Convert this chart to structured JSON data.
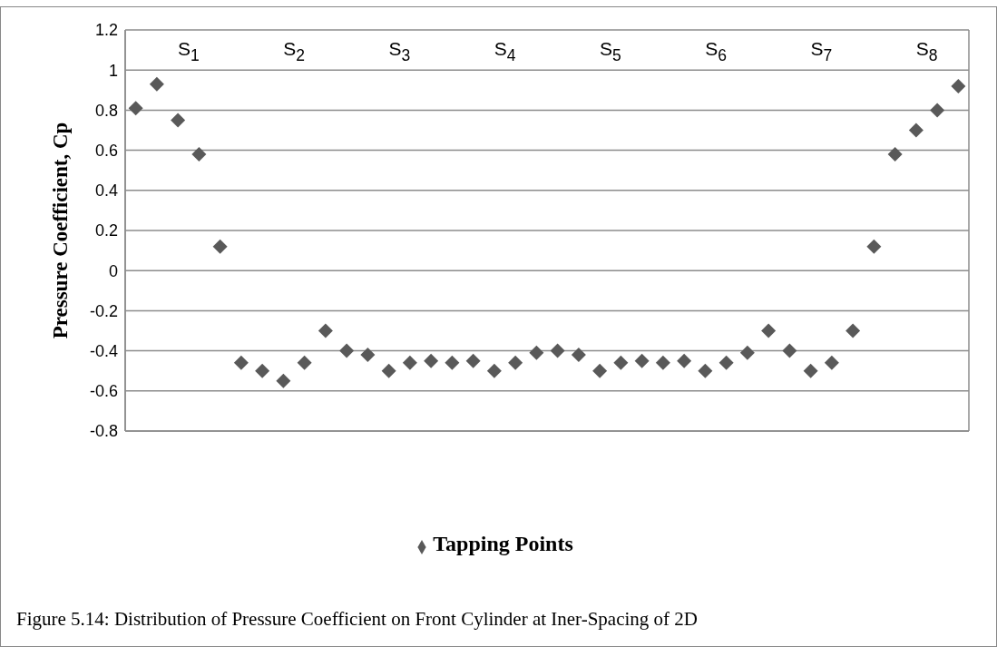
{
  "chart_data": {
    "type": "scatter",
    "ylabel": "Pressure  Coefficient, Cp",
    "categories": [
      null,
      null,
      null,
      null,
      null,
      null,
      null,
      null,
      null,
      null,
      null,
      null,
      null,
      null,
      null,
      null,
      null,
      null,
      null,
      null,
      null,
      null,
      null,
      null,
      null,
      null,
      null,
      null,
      null,
      null,
      null,
      null,
      null,
      null,
      null,
      null,
      null,
      null,
      null,
      null
    ],
    "series": [
      {
        "name": "Tapping Points",
        "color": "#595959",
        "values": [
          0.81,
          0.93,
          0.75,
          0.58,
          0.12,
          -0.46,
          -0.5,
          -0.55,
          -0.46,
          -0.3,
          -0.4,
          -0.42,
          -0.5,
          -0.46,
          -0.45,
          -0.46,
          -0.45,
          -0.5,
          -0.46,
          -0.41,
          -0.4,
          -0.42,
          -0.5,
          -0.46,
          -0.45,
          -0.46,
          -0.45,
          -0.5,
          -0.46,
          -0.41,
          -0.3,
          -0.4,
          -0.5,
          -0.46,
          -0.3,
          0.12,
          0.58,
          0.7,
          0.8,
          0.92
        ]
      }
    ],
    "ylim": [
      -0.8,
      1.2
    ],
    "yticks": [
      -0.8,
      -0.6,
      -0.4,
      -0.2,
      0,
      0.2,
      0.4,
      0.6,
      0.8,
      1,
      1.2
    ],
    "grid": true,
    "legend": "bottom",
    "marker": "diamond",
    "tick_labels": "y",
    "annotations": [
      "S$_{1}$",
      "S$_{2}$",
      "S$_{3}$",
      "S$_{4}$",
      "S$_{5}$",
      "S$_{6}$",
      "S$_{7}$",
      "S$_{8}$",
      "Figure 5.14: Distribution of Pressure Coefficient on Front Cylinder at Iner-Spacing of 2D"
    ]
  }
}
